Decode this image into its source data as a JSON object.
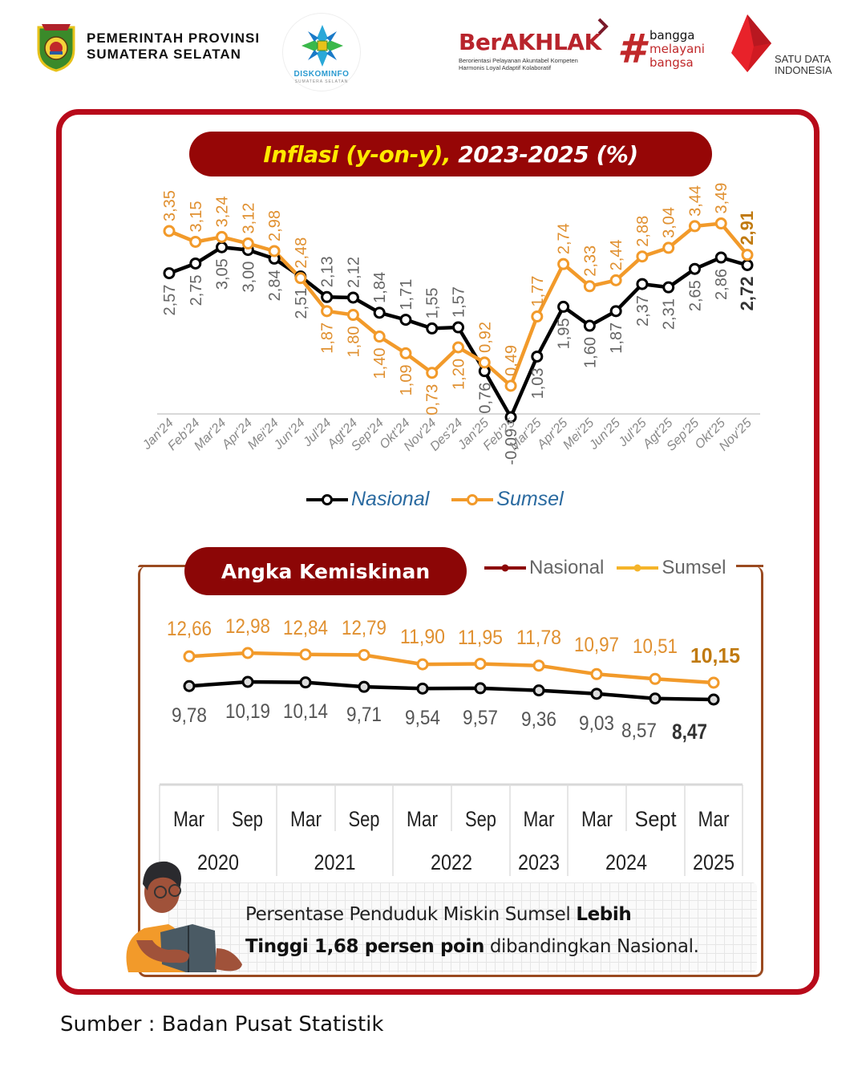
{
  "header": {
    "gov_line1": "PEMERINTAH PROVINSI",
    "gov_line2": "SUMATERA SELATAN",
    "diskominfo_name": "DISKOMINFO",
    "diskominfo_sub": "SUMATERA SELATAN",
    "berakhlak_title": "BerAKHLAK",
    "berakhlak_line1": "Berorientasi Pelayanan Akuntabel Kompeten",
    "berakhlak_line2": "Harmonis Loyal Adaptif Kolaboratif",
    "bangga_line1": "bangga",
    "bangga_line2": "melayani",
    "bangga_line3": "bangsa",
    "satu_data_line1": "SATU DATA",
    "satu_data_line2": "INDONESIA"
  },
  "inflation": {
    "title_yellow": "Inflasi (y-on-y),",
    "title_white": " 2023-2025 (%)",
    "legend_nasional": "Nasional",
    "legend_sumsel": "Sumsel"
  },
  "poverty": {
    "title": "Angka Kemiskinan",
    "legend_nasional": "Nasional",
    "legend_sumsel": "Sumsel",
    "note_part1": "Persentase Penduduk Miskin Sumsel ",
    "note_bold1": "Lebih",
    "note_bold2": "Tinggi 1,68 persen poin",
    "note_part2": " dibandingkan Nasional."
  },
  "footer": {
    "source": "Sumber : Badan Pusat Statistik"
  },
  "colors": {
    "frame_red": "#b80a1a",
    "pill_dark_red": "#960606",
    "nasional_line": "#000000",
    "sumsel_line": "#f29a2a",
    "sumsel_label": "#d98a2a",
    "nasional_label": "#555555",
    "poverty_border": "#9a4a20"
  },
  "chart_data": [
    {
      "type": "line",
      "title": "Inflasi (y-on-y), 2023-2025 (%)",
      "xlabel": "",
      "ylabel": "",
      "categories": [
        "Jan'24",
        "Feb'24",
        "Mar'24",
        "Apr'24",
        "Mei'24",
        "Jun'24",
        "Jul'24",
        "Agt'24",
        "Sep'24",
        "Okt'24",
        "Nov'24",
        "Des'24",
        "Jan'25",
        "Feb'25",
        "Mar'25",
        "Apr'25",
        "Mei'25",
        "Jun'25",
        "Jul'25",
        "Agt'25",
        "Sep'25",
        "Okt'25",
        "Nov'25"
      ],
      "series": [
        {
          "name": "Nasional",
          "color": "#000000",
          "values": [
            2.57,
            2.75,
            3.05,
            3.0,
            2.84,
            2.51,
            2.13,
            2.12,
            1.84,
            1.71,
            1.55,
            1.57,
            0.76,
            -0.09,
            1.03,
            1.95,
            1.6,
            1.87,
            2.37,
            2.31,
            2.65,
            2.86,
            2.72
          ],
          "labels": [
            "2,57",
            "2,75",
            "3,05",
            "3,00",
            "2,84",
            "2,51",
            "2,13",
            "2,12",
            "1,84",
            "1,71",
            "1,55",
            "1,57",
            "0,76",
            "-0,09",
            "1,03",
            "1,95",
            "1,60",
            "1,87",
            "2,37",
            "2,31",
            "2,65",
            "2,86",
            "2,72"
          ]
        },
        {
          "name": "Sumsel",
          "color": "#f29a2a",
          "values": [
            3.35,
            3.15,
            3.24,
            3.12,
            2.98,
            2.48,
            1.87,
            1.8,
            1.4,
            1.09,
            0.73,
            1.2,
            0.92,
            0.49,
            1.77,
            2.74,
            2.33,
            2.44,
            2.88,
            3.04,
            3.44,
            3.49,
            2.91
          ],
          "labels": [
            "3,35",
            "3,15",
            "3,24",
            "3,12",
            "2,98",
            "2,48",
            "1,87",
            "1,80",
            "1,40",
            "1,09",
            "0,73",
            "1,20",
            "0,92",
            "0,49",
            "1,77",
            "2,74",
            "2,33",
            "2,44",
            "2,88",
            "3,04",
            "3,44",
            "3,49",
            "2,91"
          ]
        }
      ],
      "legend_position": "bottom",
      "grid": false
    },
    {
      "type": "line",
      "title": "Angka Kemiskinan",
      "categories": [
        "Mar 2020",
        "Sep 2020",
        "Mar 2021",
        "Sep 2021",
        "Mar 2022",
        "Sep 2022",
        "Mar 2023",
        "Mar 2024",
        "Sept 2024",
        "Mar 2025"
      ],
      "period_labels": [
        "Mar",
        "Sep",
        "Mar",
        "Sep",
        "Mar",
        "Sep",
        "Mar",
        "Mar",
        "Sept",
        "Mar"
      ],
      "year_groups": [
        {
          "year": "2020",
          "span": 2
        },
        {
          "year": "2021",
          "span": 2
        },
        {
          "year": "2022",
          "span": 2
        },
        {
          "year": "2023",
          "span": 1
        },
        {
          "year": "2024",
          "span": 2
        },
        {
          "year": "2025",
          "span": 1
        }
      ],
      "series": [
        {
          "name": "Sumsel",
          "color": "#f29a2a",
          "values": [
            12.66,
            12.98,
            12.84,
            12.79,
            11.9,
            11.95,
            11.78,
            10.97,
            10.51,
            10.15
          ],
          "labels": [
            "12,66",
            "12,98",
            "12,84",
            "12,79",
            "11,90",
            "11,95",
            "11,78",
            "10,97",
            "10,51",
            "10,15"
          ]
        },
        {
          "name": "Nasional",
          "color": "#000000",
          "values": [
            9.78,
            10.19,
            10.14,
            9.71,
            9.54,
            9.57,
            9.36,
            9.03,
            8.57,
            8.47
          ],
          "labels": [
            "9,78",
            "10,19",
            "10,14",
            "9,71",
            "9,54",
            "9,57",
            "9,36",
            "9,03",
            "8,57",
            "8,47"
          ]
        }
      ],
      "legend_position": "top-right",
      "grid": false
    }
  ]
}
